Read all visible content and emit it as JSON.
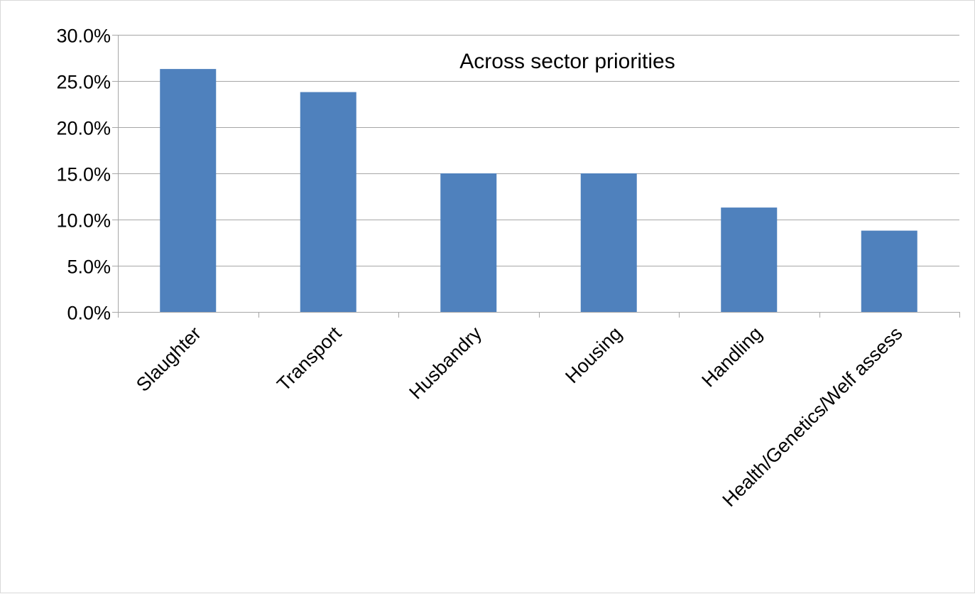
{
  "chart_data": {
    "type": "bar",
    "title": "Across sector priorities",
    "categories": [
      "Slaughter",
      "Transport",
      "Husbandry",
      "Housing",
      "Handling",
      "Health/Genetics/Welf assess"
    ],
    "values": [
      26.3,
      23.8,
      15.0,
      15.0,
      11.3,
      8.8
    ],
    "unit": "%",
    "yticks": [
      "0.0%",
      "5.0%",
      "10.0%",
      "15.0%",
      "20.0%",
      "25.0%",
      "30.0%"
    ],
    "ylim": [
      0,
      30
    ],
    "xlabel": "",
    "ylabel": "",
    "grid": true,
    "legend": "none",
    "bar_color": "#4f81bd",
    "grid_color": "#a6a6a6"
  }
}
